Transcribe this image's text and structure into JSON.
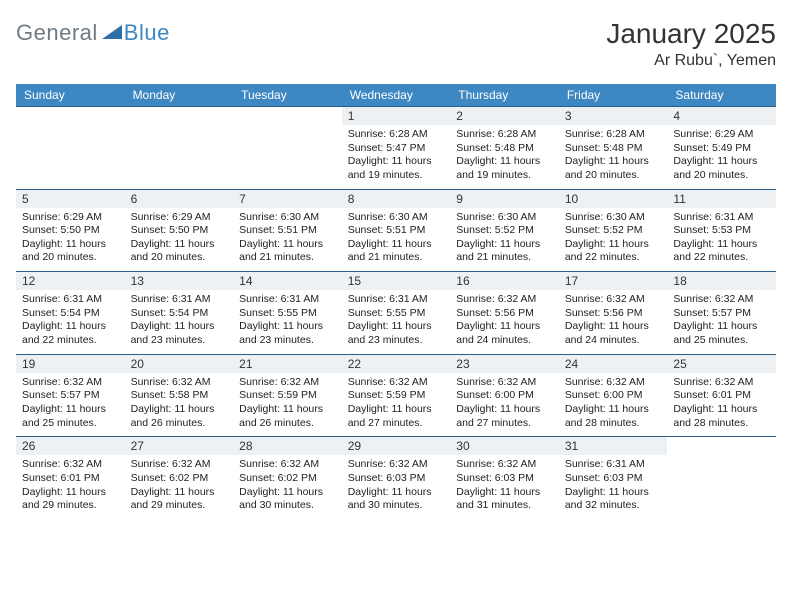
{
  "logo": {
    "text1": "General",
    "text2": "Blue"
  },
  "title": "January 2025",
  "location": "Ar Rubu`, Yemen",
  "header_bg": "#3d87c3",
  "header_fg": "#ffffff",
  "daynum_bg": "#eef1f3",
  "week_border": "#2a5d87",
  "dayNames": [
    "Sunday",
    "Monday",
    "Tuesday",
    "Wednesday",
    "Thursday",
    "Friday",
    "Saturday"
  ],
  "startOffset": 3,
  "days": [
    {
      "n": 1,
      "sr": "6:28 AM",
      "ss": "5:47 PM",
      "dl": "11 hours and 19 minutes."
    },
    {
      "n": 2,
      "sr": "6:28 AM",
      "ss": "5:48 PM",
      "dl": "11 hours and 19 minutes."
    },
    {
      "n": 3,
      "sr": "6:28 AM",
      "ss": "5:48 PM",
      "dl": "11 hours and 20 minutes."
    },
    {
      "n": 4,
      "sr": "6:29 AM",
      "ss": "5:49 PM",
      "dl": "11 hours and 20 minutes."
    },
    {
      "n": 5,
      "sr": "6:29 AM",
      "ss": "5:50 PM",
      "dl": "11 hours and 20 minutes."
    },
    {
      "n": 6,
      "sr": "6:29 AM",
      "ss": "5:50 PM",
      "dl": "11 hours and 20 minutes."
    },
    {
      "n": 7,
      "sr": "6:30 AM",
      "ss": "5:51 PM",
      "dl": "11 hours and 21 minutes."
    },
    {
      "n": 8,
      "sr": "6:30 AM",
      "ss": "5:51 PM",
      "dl": "11 hours and 21 minutes."
    },
    {
      "n": 9,
      "sr": "6:30 AM",
      "ss": "5:52 PM",
      "dl": "11 hours and 21 minutes."
    },
    {
      "n": 10,
      "sr": "6:30 AM",
      "ss": "5:52 PM",
      "dl": "11 hours and 22 minutes."
    },
    {
      "n": 11,
      "sr": "6:31 AM",
      "ss": "5:53 PM",
      "dl": "11 hours and 22 minutes."
    },
    {
      "n": 12,
      "sr": "6:31 AM",
      "ss": "5:54 PM",
      "dl": "11 hours and 22 minutes."
    },
    {
      "n": 13,
      "sr": "6:31 AM",
      "ss": "5:54 PM",
      "dl": "11 hours and 23 minutes."
    },
    {
      "n": 14,
      "sr": "6:31 AM",
      "ss": "5:55 PM",
      "dl": "11 hours and 23 minutes."
    },
    {
      "n": 15,
      "sr": "6:31 AM",
      "ss": "5:55 PM",
      "dl": "11 hours and 23 minutes."
    },
    {
      "n": 16,
      "sr": "6:32 AM",
      "ss": "5:56 PM",
      "dl": "11 hours and 24 minutes."
    },
    {
      "n": 17,
      "sr": "6:32 AM",
      "ss": "5:56 PM",
      "dl": "11 hours and 24 minutes."
    },
    {
      "n": 18,
      "sr": "6:32 AM",
      "ss": "5:57 PM",
      "dl": "11 hours and 25 minutes."
    },
    {
      "n": 19,
      "sr": "6:32 AM",
      "ss": "5:57 PM",
      "dl": "11 hours and 25 minutes."
    },
    {
      "n": 20,
      "sr": "6:32 AM",
      "ss": "5:58 PM",
      "dl": "11 hours and 26 minutes."
    },
    {
      "n": 21,
      "sr": "6:32 AM",
      "ss": "5:59 PM",
      "dl": "11 hours and 26 minutes."
    },
    {
      "n": 22,
      "sr": "6:32 AM",
      "ss": "5:59 PM",
      "dl": "11 hours and 27 minutes."
    },
    {
      "n": 23,
      "sr": "6:32 AM",
      "ss": "6:00 PM",
      "dl": "11 hours and 27 minutes."
    },
    {
      "n": 24,
      "sr": "6:32 AM",
      "ss": "6:00 PM",
      "dl": "11 hours and 28 minutes."
    },
    {
      "n": 25,
      "sr": "6:32 AM",
      "ss": "6:01 PM",
      "dl": "11 hours and 28 minutes."
    },
    {
      "n": 26,
      "sr": "6:32 AM",
      "ss": "6:01 PM",
      "dl": "11 hours and 29 minutes."
    },
    {
      "n": 27,
      "sr": "6:32 AM",
      "ss": "6:02 PM",
      "dl": "11 hours and 29 minutes."
    },
    {
      "n": 28,
      "sr": "6:32 AM",
      "ss": "6:02 PM",
      "dl": "11 hours and 30 minutes."
    },
    {
      "n": 29,
      "sr": "6:32 AM",
      "ss": "6:03 PM",
      "dl": "11 hours and 30 minutes."
    },
    {
      "n": 30,
      "sr": "6:32 AM",
      "ss": "6:03 PM",
      "dl": "11 hours and 31 minutes."
    },
    {
      "n": 31,
      "sr": "6:31 AM",
      "ss": "6:03 PM",
      "dl": "11 hours and 32 minutes."
    }
  ],
  "labels": {
    "sunrise": "Sunrise:",
    "sunset": "Sunset:",
    "daylight": "Daylight:"
  }
}
